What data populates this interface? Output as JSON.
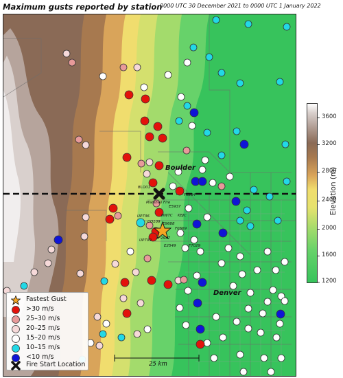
{
  "header": {
    "title": "Maximum gusts reported by station",
    "subtitle": "0000 UTC 30 December 2021 to 0000 UTC 1 January 2022"
  },
  "map": {
    "cities": [
      {
        "id": "boulder",
        "label": "Boulder"
      },
      {
        "id": "denver",
        "label": "Denver"
      }
    ],
    "station_labels": [
      "BLD01",
      "F0284",
      "Marshall Fire",
      "E5937",
      "NWTC",
      "KBJC",
      "UP736",
      "CO109",
      "E9688",
      "F0669",
      "UP709",
      "F2947",
      "E2549",
      "F7029"
    ],
    "scale_bar_label": "25 km",
    "fire_latitude_line": "dashed"
  },
  "legend": {
    "items": [
      {
        "id": "fastest",
        "label": "Fastest Gust",
        "symbol": "star",
        "color": "#f5a623"
      },
      {
        "id": "gt30",
        "label": ">30 m/s",
        "symbol": "circle",
        "color": "#e3120b"
      },
      {
        "id": "25_30",
        "label": "25–30 m/s",
        "symbol": "circle",
        "color": "#e89a9a"
      },
      {
        "id": "20_25",
        "label": "20–25 m/s",
        "symbol": "circle",
        "color": "#f6d9d9"
      },
      {
        "id": "15_20",
        "label": "15–20 m/s",
        "symbol": "circle",
        "color": "#ffffff"
      },
      {
        "id": "10_15",
        "label": "10–15 m/s",
        "symbol": "circle",
        "color": "#22d8e6"
      },
      {
        "id": "lt10",
        "label": "<10 m/s",
        "symbol": "circle",
        "color": "#0f14d6"
      },
      {
        "id": "fire",
        "label": "Fire Start Location",
        "symbol": "cross",
        "color": "#1a1a1a"
      }
    ]
  },
  "colorbar": {
    "title": "Elevation (m)",
    "ticks": [
      "3600",
      "3200",
      "2800",
      "2400",
      "2000",
      "1600",
      "1200"
    ]
  }
}
